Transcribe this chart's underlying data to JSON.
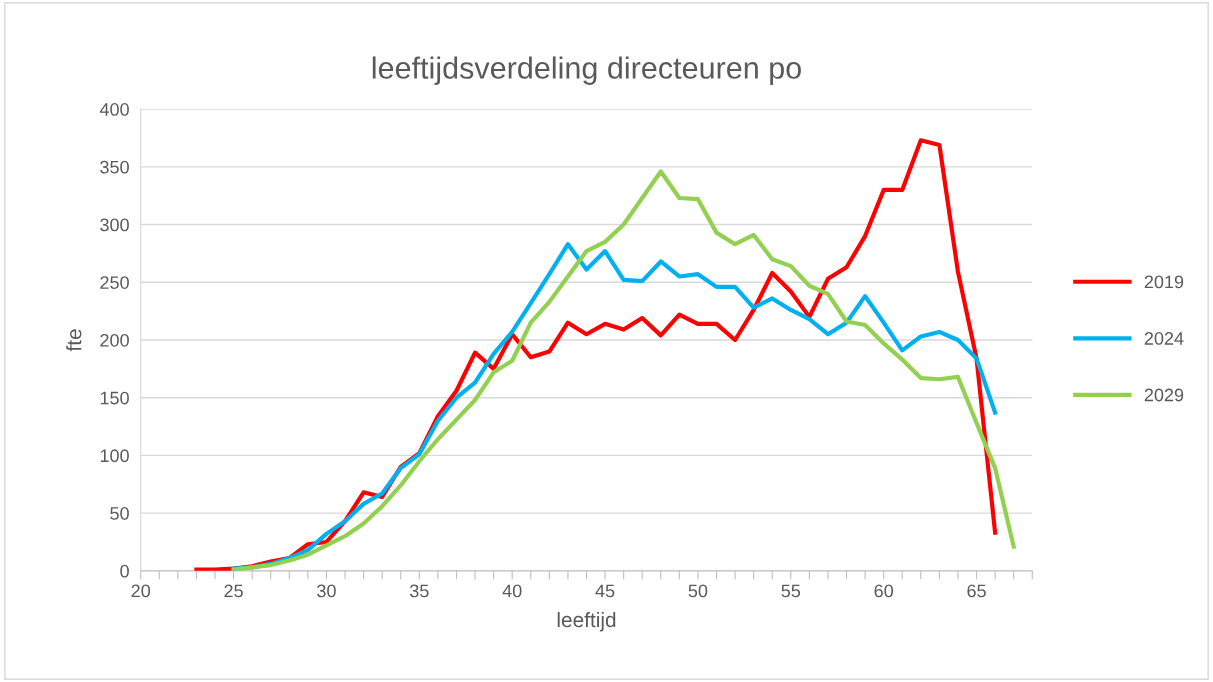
{
  "chart_data": {
    "type": "line",
    "title": "leeftijdsverdeling directeuren po",
    "xlabel": "leeftijd",
    "ylabel": "fte",
    "xlim": [
      20,
      68
    ],
    "ylim": [
      0,
      400
    ],
    "xticks": [
      20,
      {
        "value": 21,
        "label": null
      },
      {
        "value": 22,
        "label": null
      },
      {
        "value": 23,
        "label": null
      },
      {
        "value": 24,
        "label": null
      },
      25,
      {
        "value": 26,
        "label": null
      },
      {
        "value": 27,
        "label": null
      },
      {
        "value": 28,
        "label": null
      },
      {
        "value": 29,
        "label": null
      },
      30,
      {
        "value": 31,
        "label": null
      },
      {
        "value": 32,
        "label": null
      },
      {
        "value": 33,
        "label": null
      },
      {
        "value": 34,
        "label": null
      },
      35,
      {
        "value": 36,
        "label": null
      },
      {
        "value": 37,
        "label": null
      },
      {
        "value": 38,
        "label": null
      },
      {
        "value": 39,
        "label": null
      },
      40,
      {
        "value": 41,
        "label": null
      },
      {
        "value": 42,
        "label": null
      },
      {
        "value": 43,
        "label": null
      },
      {
        "value": 44,
        "label": null
      },
      45,
      {
        "value": 46,
        "label": null
      },
      {
        "value": 47,
        "label": null
      },
      {
        "value": 48,
        "label": null
      },
      {
        "value": 49,
        "label": null
      },
      50,
      {
        "value": 51,
        "label": null
      },
      {
        "value": 52,
        "label": null
      },
      {
        "value": 53,
        "label": null
      },
      {
        "value": 54,
        "label": null
      },
      55,
      {
        "value": 56,
        "label": null
      },
      {
        "value": 57,
        "label": null
      },
      {
        "value": 58,
        "label": null
      },
      {
        "value": 59,
        "label": null
      },
      60,
      {
        "value": 61,
        "label": null
      },
      {
        "value": 62,
        "label": null
      },
      {
        "value": 63,
        "label": null
      },
      {
        "value": 64,
        "label": null
      },
      65,
      {
        "value": 66,
        "label": null
      },
      {
        "value": 67,
        "label": null
      },
      {
        "value": 68,
        "label": null
      }
    ],
    "yticks": [
      0,
      50,
      100,
      150,
      200,
      250,
      300,
      350,
      400
    ],
    "grid": "y",
    "legend": "right",
    "marker": "none",
    "line_style": "solid",
    "series": [
      {
        "name": "2019",
        "color": "#ff0000",
        "x": [
          23,
          24,
          25,
          26,
          27,
          28,
          29,
          30,
          31,
          32,
          33,
          34,
          35,
          36,
          37,
          38,
          39,
          40,
          41,
          42,
          43,
          44,
          45,
          46,
          47,
          48,
          49,
          50,
          51,
          52,
          53,
          54,
          55,
          56,
          57,
          58,
          59,
          60,
          61,
          62,
          63,
          64,
          65,
          66
        ],
        "values": [
          1,
          1,
          2,
          4,
          8,
          11,
          23,
          25,
          43,
          68,
          64,
          90,
          102,
          134,
          156,
          189,
          175,
          205,
          185,
          190,
          215,
          205,
          214,
          209,
          219,
          204,
          222,
          214,
          214,
          200,
          226,
          258,
          242,
          220,
          253,
          263,
          290,
          330,
          330,
          373,
          369,
          259,
          184,
          33
        ]
      },
      {
        "name": "2024",
        "color": "#00b0f0",
        "x": [
          25,
          26,
          27,
          28,
          29,
          30,
          31,
          32,
          33,
          34,
          35,
          36,
          37,
          38,
          39,
          40,
          41,
          42,
          43,
          44,
          45,
          46,
          47,
          48,
          49,
          50,
          51,
          52,
          53,
          54,
          55,
          56,
          57,
          58,
          59,
          60,
          61,
          62,
          63,
          64,
          65,
          66
        ],
        "values": [
          2,
          3,
          6,
          11,
          18,
          32,
          43,
          58,
          67,
          89,
          101,
          130,
          150,
          163,
          188,
          207,
          232,
          257,
          283,
          261,
          277,
          252,
          251,
          268,
          255,
          257,
          246,
          246,
          228,
          236,
          226,
          218,
          205,
          215,
          238,
          215,
          191,
          203,
          207,
          200,
          184,
          137
        ]
      },
      {
        "name": "2029",
        "color": "#92d050",
        "x": [
          25,
          26,
          27,
          28,
          29,
          30,
          31,
          32,
          33,
          34,
          35,
          36,
          37,
          38,
          39,
          40,
          41,
          42,
          43,
          44,
          45,
          46,
          47,
          48,
          49,
          50,
          51,
          52,
          53,
          54,
          55,
          56,
          57,
          58,
          59,
          60,
          61,
          62,
          63,
          64,
          65,
          66,
          67
        ],
        "values": [
          1,
          3,
          5,
          9,
          14,
          22,
          30,
          41,
          56,
          74,
          95,
          114,
          131,
          148,
          172,
          182,
          215,
          233,
          255,
          277,
          285,
          300,
          323,
          346,
          323,
          322,
          293,
          283,
          291,
          270,
          264,
          247,
          240,
          216,
          213,
          197,
          183,
          167,
          166,
          168,
          128,
          89,
          21
        ]
      }
    ]
  }
}
